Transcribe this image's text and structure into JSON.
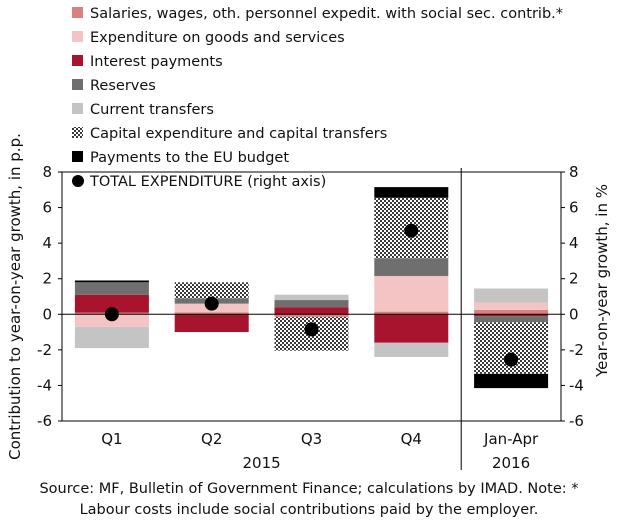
{
  "chart_data": {
    "type": "bar",
    "stacked": true,
    "categories": [
      "Q1",
      "Q2",
      "Q3",
      "Q4",
      "Jan-Apr"
    ],
    "category_groups": [
      {
        "label": "2015",
        "categories": [
          "Q1",
          "Q2",
          "Q3",
          "Q4"
        ]
      },
      {
        "label": "2016",
        "categories": [
          "Jan-Apr"
        ]
      }
    ],
    "series": [
      {
        "key": "salaries",
        "name": "Salaries, wages, oth. personnel expedit. with social sec. contrib.*",
        "color": "#d98080",
        "pattern": "solid",
        "values": [
          0.1,
          0.1,
          -0.15,
          0.15,
          0.25
        ]
      },
      {
        "key": "goods",
        "name": "Expenditure on goods and services",
        "color": "#f4c4c4",
        "pattern": "solid",
        "values": [
          -0.7,
          0.5,
          null,
          2.0,
          0.4
        ]
      },
      {
        "key": "interest",
        "name": "Interest payments",
        "color": "#a8132d",
        "pattern": "solid",
        "values": [
          1.0,
          -1.0,
          0.4,
          -1.6,
          -0.1
        ]
      },
      {
        "key": "reserves",
        "name": "Reserves",
        "color": "#6f6f6f",
        "pattern": "solid",
        "values": [
          0.7,
          0.3,
          0.4,
          1.0,
          -0.35
        ]
      },
      {
        "key": "current",
        "name": "Current transfers",
        "color": "#c4c4c4",
        "pattern": "solid",
        "values": [
          -1.2,
          null,
          0.3,
          -0.8,
          0.8
        ]
      },
      {
        "key": "capital",
        "name": "Capital expenditure and capital transfers",
        "color": "#444444",
        "pattern": "hatch",
        "values": [
          null,
          0.9,
          -1.9,
          3.4,
          -2.9
        ]
      },
      {
        "key": "eu",
        "name": "Payments to the EU budget",
        "color": "#000000",
        "pattern": "solid",
        "values": [
          0.1,
          null,
          null,
          0.6,
          -0.8
        ]
      }
    ],
    "total": {
      "name": "TOTAL EXPENDITURE (right axis)",
      "values": [
        0.0,
        0.6,
        -0.85,
        4.7,
        -2.55
      ]
    },
    "ylabel": "Contribution to year-on-year growth, in p.p.",
    "y2label": "Year-on-year growth, in %",
    "ylim": [
      -6,
      8
    ],
    "y2lim": [
      -6,
      8
    ],
    "yticks": [
      -6,
      -4,
      -2,
      0,
      2,
      4,
      6,
      8
    ],
    "legend_position": "top",
    "grid": false
  },
  "source_note": [
    "Source: MF, Bulletin of Government Finance; calculations by IMAD. Note: *",
    "Labour costs include social contributions paid by the employer."
  ]
}
